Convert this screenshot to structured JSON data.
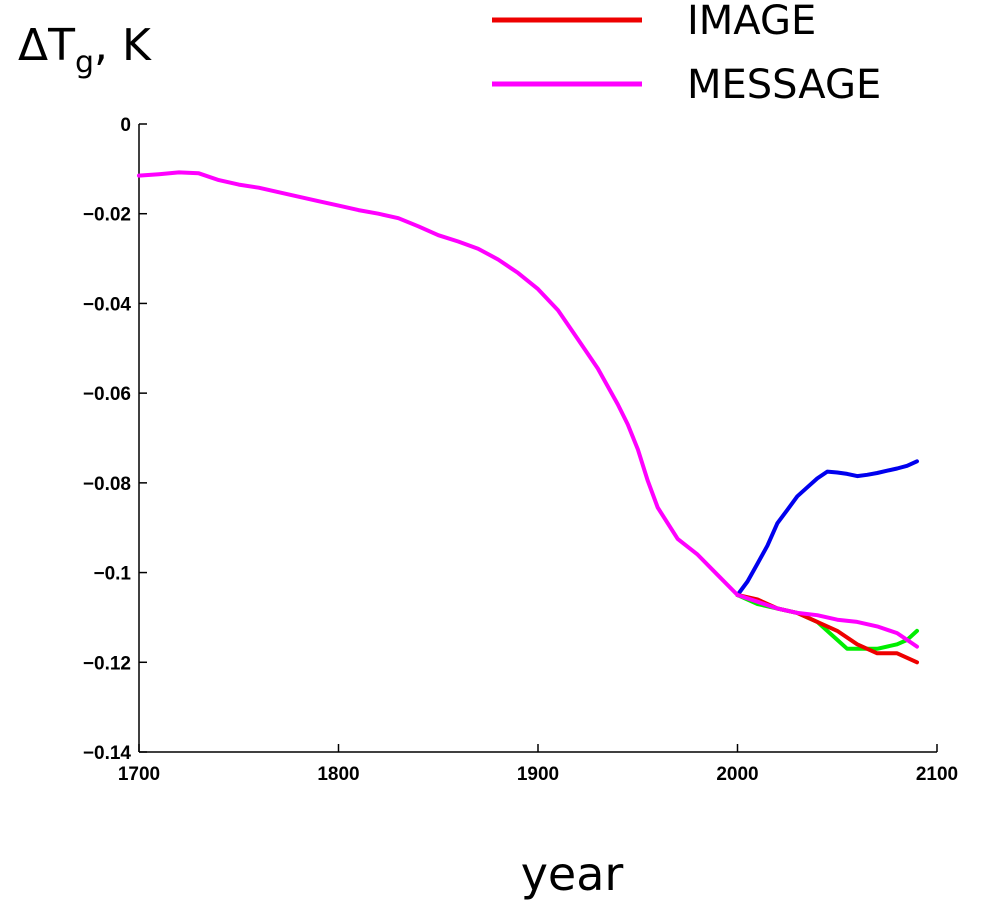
{
  "chart_data": {
    "type": "line",
    "title": "",
    "ylabel": {
      "main": "ΔT",
      "subscript": "g",
      "suffix": ", K"
    },
    "xlabel": "year",
    "xlim": [
      1700,
      2100
    ],
    "ylim": [
      -0.14,
      0
    ],
    "x_ticks": [
      1700,
      1800,
      1900,
      2000,
      2100
    ],
    "x_tick_labels": [
      "1700",
      "1800",
      "1900",
      "2000",
      "2100"
    ],
    "y_ticks": [
      0,
      -0.02,
      -0.04,
      -0.06,
      -0.08,
      -0.1,
      -0.12,
      -0.14
    ],
    "y_tick_labels": [
      "0",
      "−0.02",
      "−0.04",
      "−0.06",
      "−0.08",
      "−0.1",
      "−0.12",
      "−0.14"
    ],
    "grid": false,
    "legend_position": "top-right",
    "series": [
      {
        "color": "#0000ee",
        "x": [
          2000,
          2005,
          2010,
          2015,
          2020,
          2025,
          2030,
          2035,
          2040,
          2045,
          2050,
          2055,
          2060,
          2065,
          2070,
          2075,
          2080,
          2085,
          2090
        ],
        "y": [
          -0.105,
          -0.102,
          -0.098,
          -0.094,
          -0.089,
          -0.086,
          -0.083,
          -0.081,
          -0.079,
          -0.0775,
          -0.0777,
          -0.078,
          -0.0785,
          -0.0782,
          -0.0778,
          -0.0773,
          -0.0768,
          -0.0762,
          -0.0752
        ]
      },
      {
        "color": "#00ee00",
        "x": [
          2000,
          2010,
          2020,
          2030,
          2040,
          2050,
          2055,
          2060,
          2070,
          2080,
          2085,
          2090
        ],
        "y": [
          -0.105,
          -0.107,
          -0.108,
          -0.109,
          -0.111,
          -0.115,
          -0.117,
          -0.117,
          -0.117,
          -0.116,
          -0.115,
          -0.113
        ]
      },
      {
        "name": "IMAGE",
        "color": "#ee0000",
        "x": [
          2000,
          2010,
          2020,
          2030,
          2040,
          2050,
          2060,
          2070,
          2080,
          2090
        ],
        "y": [
          -0.105,
          -0.106,
          -0.108,
          -0.109,
          -0.111,
          -0.113,
          -0.116,
          -0.118,
          -0.118,
          -0.12
        ]
      },
      {
        "name": "MESSAGE",
        "color": "#ff00ff",
        "x": [
          1700,
          1710,
          1720,
          1730,
          1740,
          1750,
          1760,
          1770,
          1780,
          1790,
          1800,
          1810,
          1820,
          1830,
          1840,
          1850,
          1860,
          1870,
          1880,
          1890,
          1900,
          1910,
          1920,
          1930,
          1940,
          1945,
          1950,
          1955,
          1960,
          1970,
          1980,
          1990,
          2000,
          2010,
          2020,
          2030,
          2040,
          2050,
          2060,
          2070,
          2080,
          2090
        ],
        "y": [
          -0.0115,
          -0.0112,
          -0.0108,
          -0.011,
          -0.0125,
          -0.0135,
          -0.0142,
          -0.0152,
          -0.0162,
          -0.0172,
          -0.0182,
          -0.0192,
          -0.02,
          -0.021,
          -0.0228,
          -0.0248,
          -0.0262,
          -0.0278,
          -0.0302,
          -0.0332,
          -0.0368,
          -0.0415,
          -0.048,
          -0.0545,
          -0.0625,
          -0.067,
          -0.0725,
          -0.0795,
          -0.0855,
          -0.0925,
          -0.096,
          -0.1005,
          -0.105,
          -0.1065,
          -0.108,
          -0.109,
          -0.1095,
          -0.1105,
          -0.111,
          -0.112,
          -0.1135,
          -0.1165
        ]
      }
    ]
  }
}
